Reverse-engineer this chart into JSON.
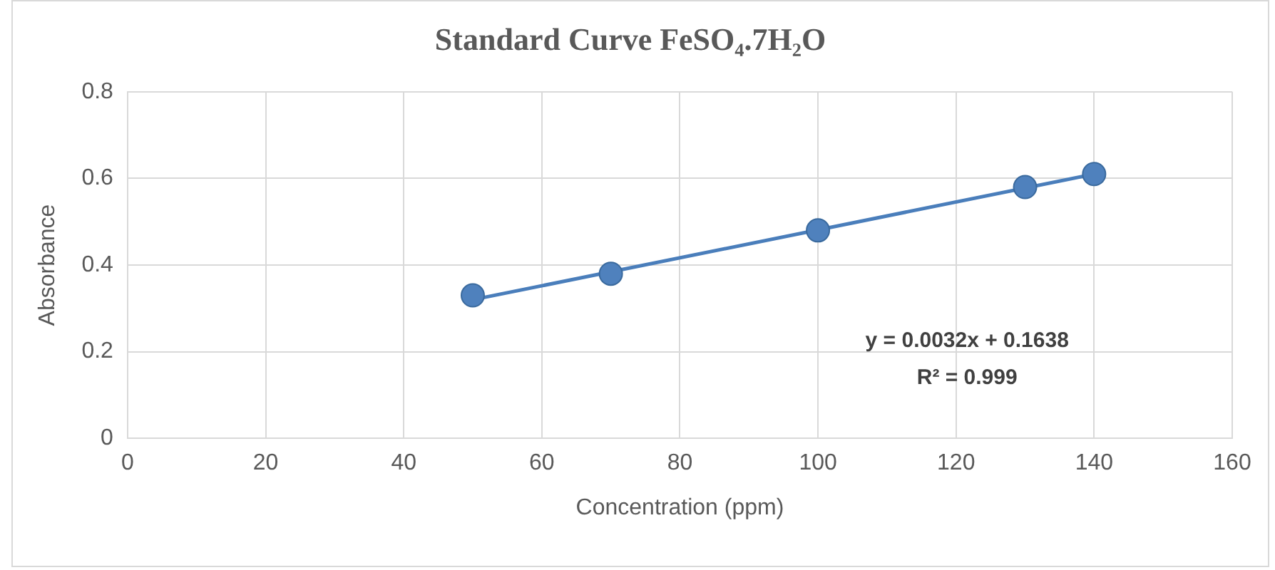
{
  "chart_data": {
    "type": "scatter",
    "title": "Standard Curve FeSO₄.7H₂O",
    "xlabel": "Concentration (ppm)",
    "ylabel": "Absorbance",
    "series": [
      {
        "type": "scatter",
        "color": "#4f81bd",
        "x": [
          50,
          70,
          100,
          130,
          140
        ],
        "values": [
          0.33,
          0.38,
          0.48,
          0.58,
          0.61
        ],
        "marker": "circle"
      },
      {
        "type": "line",
        "color": "#4a7ebb",
        "x": [
          50,
          140
        ],
        "values": [
          0.32,
          0.61
        ],
        "marker": "none",
        "line_style": "solid"
      }
    ],
    "xlim": [
      0,
      160
    ],
    "xticks": [
      0,
      20,
      40,
      60,
      80,
      100,
      120,
      140,
      160
    ],
    "ylim": [
      0,
      0.8
    ],
    "yticks": [
      0,
      0.2,
      0.4,
      0.6,
      0.8
    ],
    "grid": true,
    "legend": false,
    "annotations": [
      "y = 0.0032x + 0.1638",
      "R² = 0.999"
    ]
  }
}
